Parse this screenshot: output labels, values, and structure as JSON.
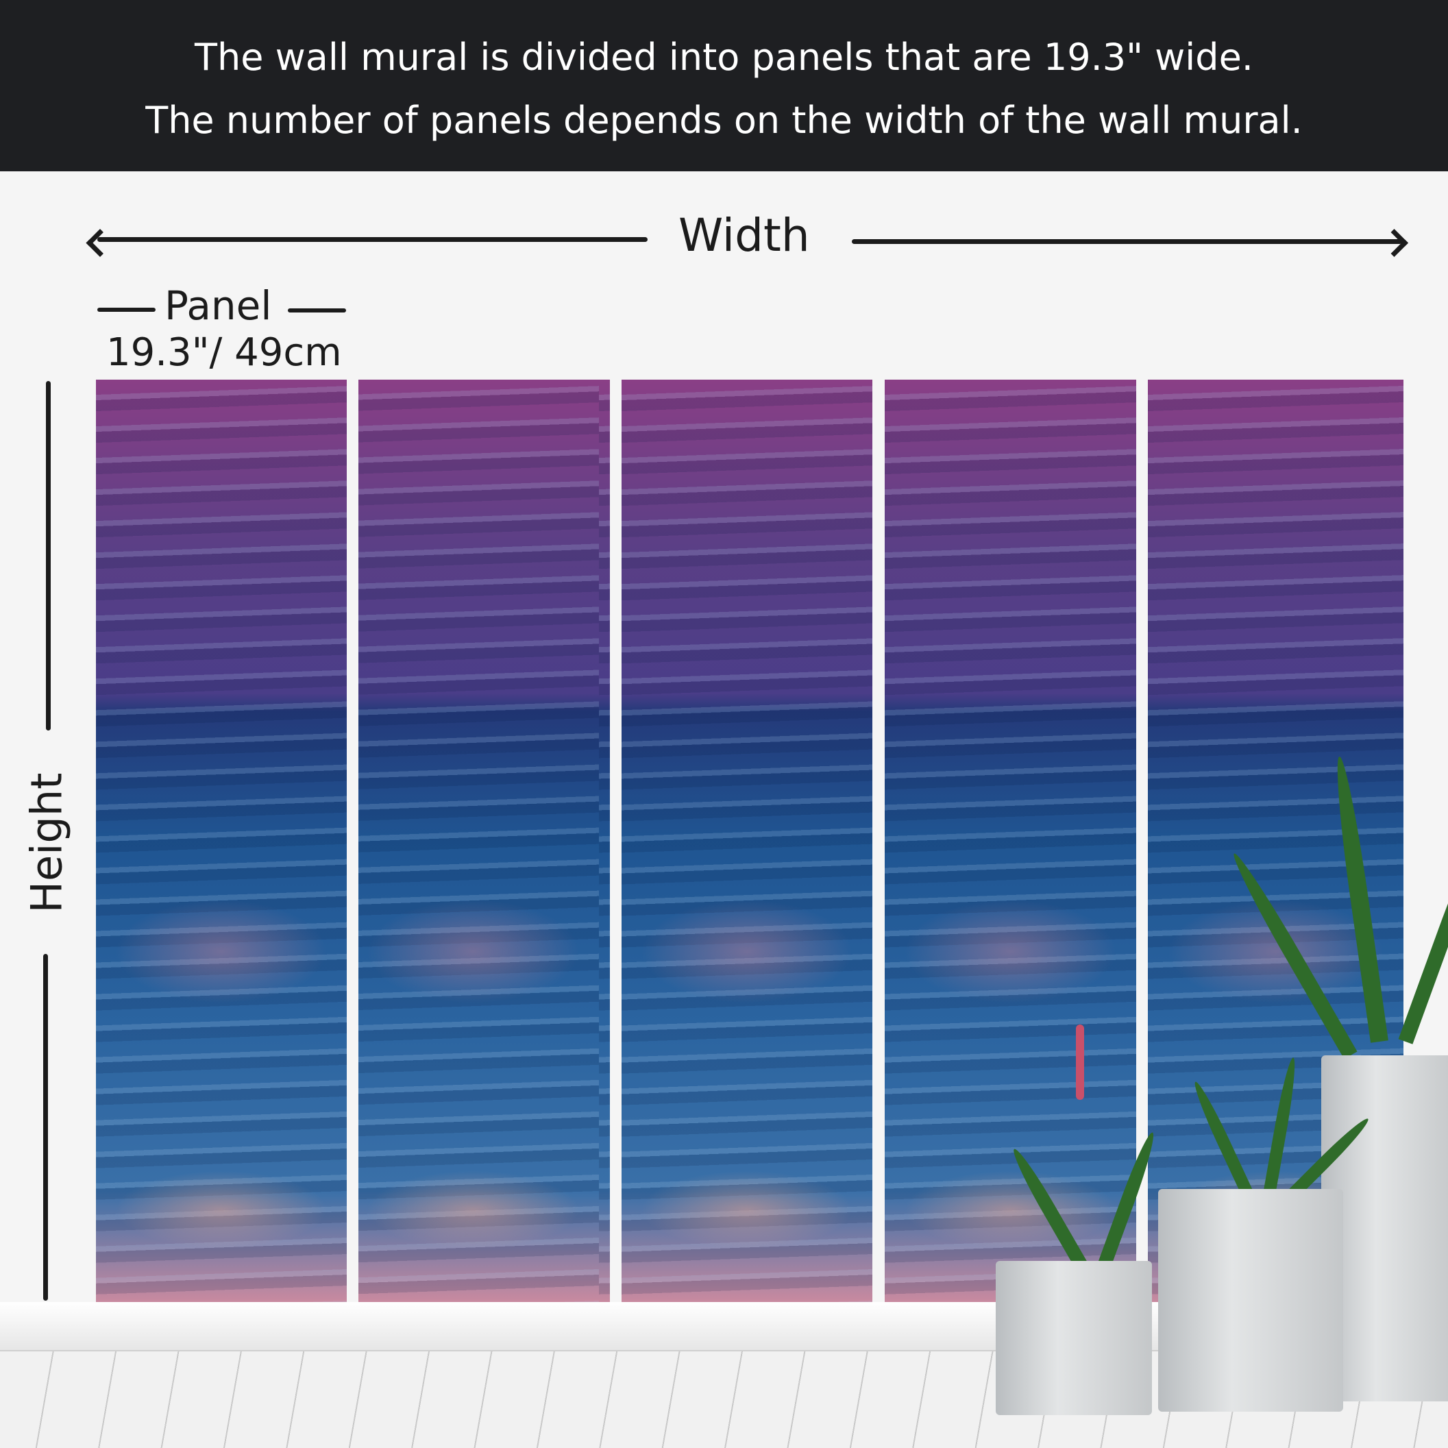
{
  "header": {
    "line1": "The wall mural is divided into panels that are 19.3\" wide.",
    "line2": "The number of panels depends on the width of the wall mural."
  },
  "dimensions": {
    "width_label": "Width",
    "panel_label": "Panel",
    "panel_size": "19.3\"/ 49cm",
    "height_label": "Height"
  },
  "panels": {
    "count": 5
  },
  "colors": {
    "header_bg": "#1e1f22",
    "sky_top": "#8a3f86",
    "sea": "#1f5592"
  }
}
